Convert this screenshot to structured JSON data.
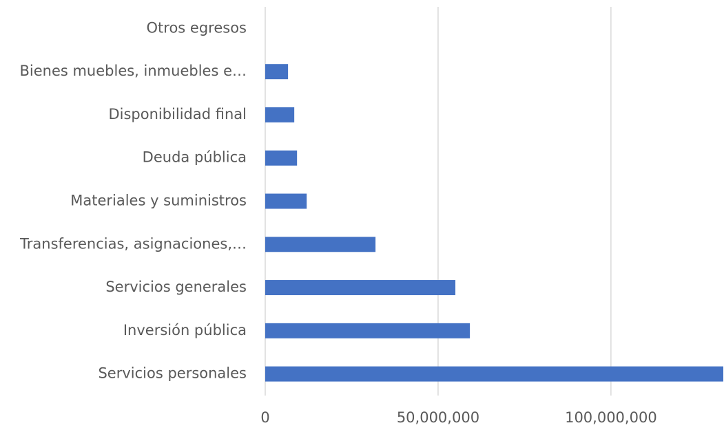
{
  "chart_data": {
    "type": "barh",
    "categories": [
      "Otros egresos",
      "Bienes muebles, inmuebles e…",
      "Disponibilidad final",
      "Deuda pública",
      "Materiales y suministros",
      "Transferencias, asignaciones,…",
      "Servicios generales",
      "Inversión pública",
      "Servicios personales"
    ],
    "values": [
      0,
      6600000,
      8400000,
      9200000,
      12000000,
      31900000,
      55000000,
      59200000,
      132500000
    ],
    "color": "#4472c4",
    "xlim": [
      0,
      132700000
    ],
    "xticks": [
      0,
      {
        "value": 50000000,
        "label": "50,000,000"
      },
      {
        "value": 100000000,
        "label": "100,000,000"
      }
    ],
    "grid": true
  }
}
